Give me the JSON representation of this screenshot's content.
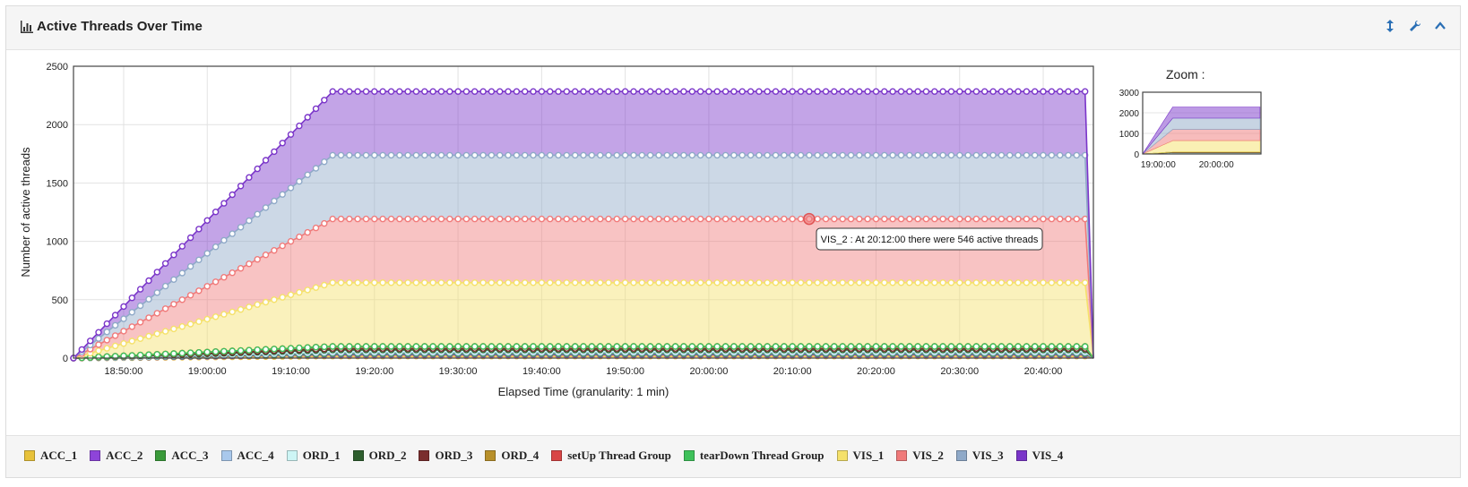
{
  "panel": {
    "title": "Active Threads Over Time",
    "title_icon": "bar-chart-icon",
    "tools": [
      {
        "name": "resize-vertical-icon",
        "glyph": "↕"
      },
      {
        "name": "wrench-icon",
        "glyph": "🔧"
      },
      {
        "name": "collapse-chevron-icon",
        "glyph": "⌃"
      }
    ]
  },
  "zoom": {
    "label": "Zoom :"
  },
  "tooltip": {
    "text": "VIS_2 : At 20:12:00 there were 546 active threads"
  },
  "chart_data": {
    "type": "area",
    "stacked": true,
    "title": "",
    "xlabel": "Elapsed Time (granularity: 1 min)",
    "ylabel": "Number of active threads",
    "ylim": [
      0,
      2500
    ],
    "yticks": [
      0,
      500,
      1000,
      1500,
      2000,
      2500
    ],
    "xlim_minutes": [
      "18:44:00",
      "20:46:00"
    ],
    "xticks": [
      "18:50:00",
      "19:00:00",
      "19:10:00",
      "19:20:00",
      "19:30:00",
      "19:40:00",
      "19:50:00",
      "20:00:00",
      "20:10:00",
      "20:20:00",
      "20:30:00",
      "20:40:00"
    ],
    "ramp_start": "18:44:00",
    "ramp_end": "19:15:00",
    "series_end": "20:45:00",
    "drop_to": "20:46:00",
    "series": [
      {
        "name": "ACC_1",
        "color": "#e8c23a",
        "plateau": 18
      },
      {
        "name": "ACC_2",
        "color": "#8e44d9",
        "plateau": 12
      },
      {
        "name": "ACC_3",
        "color": "#3a9a3a",
        "plateau": 8
      },
      {
        "name": "ACC_4",
        "color": "#a9c8ec",
        "plateau": 10
      },
      {
        "name": "ORD_1",
        "color": "#cdf5f5",
        "plateau": 12
      },
      {
        "name": "ORD_2",
        "color": "#2e5e2e",
        "plateau": 10
      },
      {
        "name": "ORD_3",
        "color": "#7a2e2e",
        "plateau": 12
      },
      {
        "name": "ORD_4",
        "color": "#b8902a",
        "plateau": 18
      },
      {
        "name": "setUp Thread Group",
        "color": "#d94545",
        "plateau": 0
      },
      {
        "name": "tearDown Thread Group",
        "color": "#3ec15a",
        "plateau": 0
      },
      {
        "name": "VIS_1",
        "color": "#f5e16a",
        "plateau": 546
      },
      {
        "name": "VIS_2",
        "color": "#f07a7a",
        "plateau": 546
      },
      {
        "name": "VIS_3",
        "color": "#8fa9c8",
        "plateau": 546
      },
      {
        "name": "VIS_4",
        "color": "#7a35c9",
        "plateau": 546
      }
    ],
    "zoom_chart": {
      "ylim": [
        0,
        3000
      ],
      "yticks": [
        0,
        1000,
        2000,
        3000
      ],
      "xticks": [
        "19:00:00",
        "20:00:00"
      ]
    }
  }
}
